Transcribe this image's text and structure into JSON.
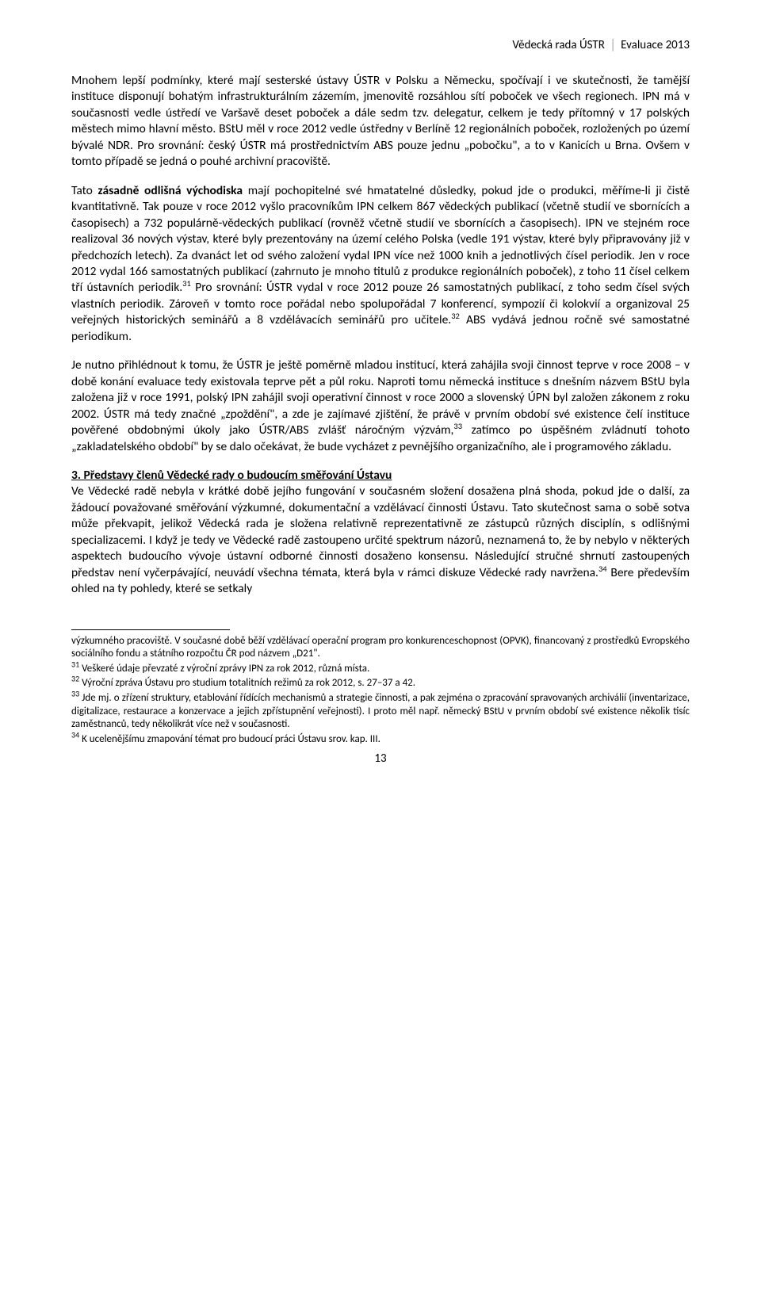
{
  "header": {
    "left": "Vědecká rada ÚSTR",
    "right": "Evaluace 2013"
  },
  "paragraphs": {
    "p1": "Mnohem lepší podmínky, které mají sesterské ústavy ÚSTR v Polsku a Německu, spočívají i ve skutečnosti, že tamější instituce disponují bohatým infrastrukturálním zázemím, jmenovitě rozsáhlou sítí poboček ve všech regionech. IPN má v současnosti vedle ústředí ve Varšavě deset poboček a dále sedm tzv. delegatur, celkem je tedy přítomný v 17 polských městech mimo hlavní město. BStU měl v roce 2012 vedle ústředny v Berlíně 12 regionálních poboček, rozložených po území bývalé NDR. Pro srovnání: český ÚSTR má prostřednictvím ABS pouze jednu „pobočku\", a to v Kanicích u Brna. Ovšem v tomto případě se jedná o pouhé archivní pracoviště.",
    "p2_a": "Tato ",
    "p2_b": "zásadně odlišná východiska",
    "p2_c": " mají pochopitelné své hmatatelné důsledky, pokud jde o produkci, měříme-li ji čistě kvantitativně. Tak pouze v roce 2012 vyšlo pracovníkům IPN celkem 867 vědeckých publikací (včetně studií ve sbornících a časopisech) a 732 populárně-vědeckých publikací (rovněž včetně studií ve sbornících a časopisech). IPN ve stejném roce realizoval 36 nových výstav, které byly prezentovány na území celého Polska (vedle 191 výstav, které byly připravovány již v předchozích letech). Za dvanáct let od svého založení vydal IPN více než 1000 knih a jednotlivých čísel periodik. Jen v roce 2012 vydal 166 samostatných publikací (zahrnuto je mnoho titulů z produkce regionálních poboček), z toho 11 čísel celkem tří ústavních periodik.",
    "p2_d": " Pro srovnání: ÚSTR vydal v roce 2012 pouze 26 samostatných publikací, z toho sedm čísel svých vlastních periodik. Zároveň v tomto roce pořádal nebo spolupořádal 7 konferencí, sympozií či kolokvií a organizoval 25 veřejných historických seminářů a 8 vzdělávacích seminářů pro učitele.",
    "p2_e": " ABS vydává jednou ročně své samostatné periodikum.",
    "p3_a": "Je nutno přihlédnout k tomu, že ÚSTR je ještě poměrně mladou institucí, která zahájila svoji činnost teprve v roce 2008 – v době konání evaluace tedy existovala teprve pět a půl roku. Naproti tomu německá instituce s dnešním názvem BStU byla založena již v roce 1991, polský IPN zahájil svoji operativní činnost v roce 2000 a slovenský ÚPN byl založen zákonem z roku 2002. ÚSTR má tedy značné „zpoždění\", a zde je zajímavé zjištění, že právě v prvním období své existence čelí instituce pověřené obdobnými úkoly jako ÚSTR/ABS zvlášť náročným výzvám,",
    "p3_b": " zatímco po úspěšném zvládnutí tohoto „zakladatelského období\" by se dalo očekávat, že bude vycházet z pevnějšího organizačního, ale i programového základu.",
    "section_title": "3. Představy členů Vědecké rady o budoucím směřování Ústavu",
    "p4_a": "Ve Vědecké radě nebyla v krátké době jejího fungování v současném složení dosažena plná shoda, pokud jde o další, za žádoucí považované směřování výzkumné, dokumentační a vzdělávací činnosti Ústavu. Tato skutečnost sama o sobě sotva může překvapit, jelikož Vědecká rada je složena relativně reprezentativně ze zástupců různých disciplín, s odlišnými specializacemi. I když je tedy ve Vědecké radě zastoupeno určité spektrum názorů, neznamená to, že by nebylo v některých aspektech budoucího vývoje ústavní odborné činnosti dosaženo konsensu. Následující stručné shrnutí zastoupených představ není vyčerpávající, neuvádí všechna témata, která byla v rámci diskuze Vědecké rady navržena.",
    "p4_b": " Bere především ohled na ty pohledy, které se setkaly"
  },
  "footnotes": {
    "cont": "výzkumného pracoviště. V současné době běží vzdělávací operační program pro konkurenceschopnost (OPVK), financovaný z prostředků Evropského sociálního fondu a státního rozpočtu ČR pod názvem „D21\".",
    "f31": " Veškeré údaje převzaté z výroční zprávy IPN za rok 2012, různá místa.",
    "f32": " Výroční zpráva Ústavu pro studium totalitních režimů za rok 2012, s. 27–37 a 42.",
    "f33": " Jde mj. o zřízení struktury, etablování řídících mechanismů a strategie činnosti, a pak zejména o zpracování spravovaných archiválií (inventarizace, digitalizace, restaurace a konzervace a jejich zpřístupnění veřejnosti). I proto měl např. německý BStU v prvním období své existence několik tisíc zaměstnanců, tedy několikrát více než v současnosti.",
    "f34": " K ucelenějšímu zmapování témat pro budoucí práci Ústavu srov. kap. III."
  },
  "refs": {
    "r31": "31",
    "r32": "32",
    "r33": "33",
    "r34": "34"
  },
  "pagenum": "13"
}
